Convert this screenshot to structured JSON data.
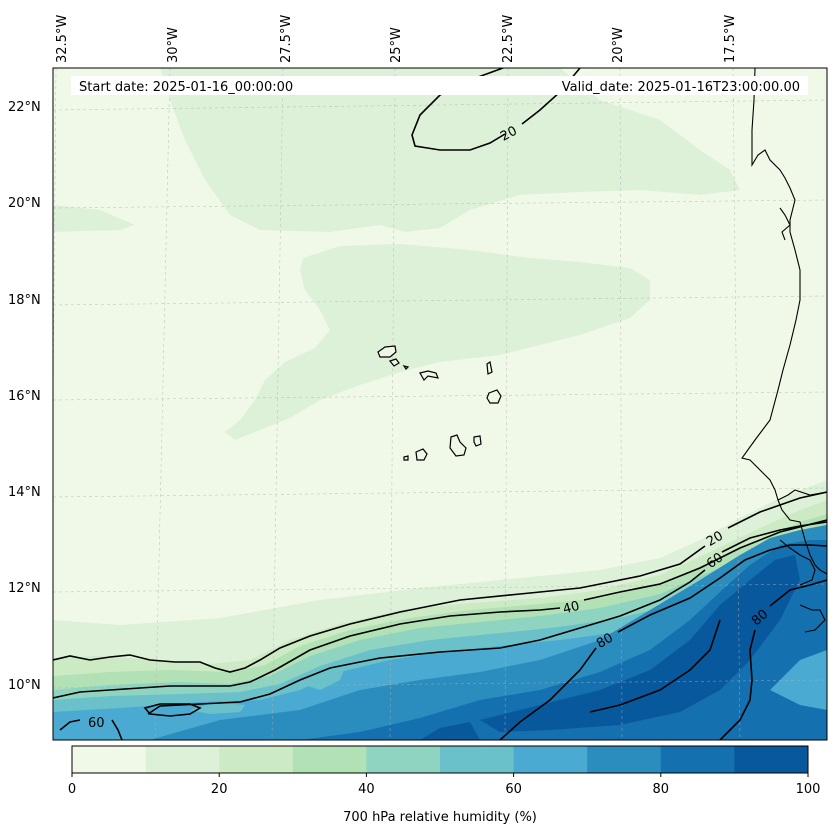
{
  "header": {
    "start_date": "Start date: 2025-01-16_00:00:00",
    "valid_date": "Valid_date: 2025-01-16T23:00:00.00"
  },
  "axes": {
    "lon_labels": [
      "32.5°W",
      "30°W",
      "27.5°W",
      "25°W",
      "22.5°W",
      "20°W",
      "17.5°W"
    ],
    "lat_labels": [
      "22°N",
      "20°N",
      "18°N",
      "16°N",
      "14°N",
      "12°N",
      "10°N"
    ]
  },
  "contour_labels": [
    {
      "text": "20"
    },
    {
      "text": "20"
    },
    {
      "text": "60"
    },
    {
      "text": "40"
    },
    {
      "text": "80"
    },
    {
      "text": "80"
    },
    {
      "text": "60"
    }
  ],
  "colorbar": {
    "title": "700 hPa relative humidity (%)",
    "ticks": [
      "0",
      "20",
      "40",
      "60",
      "80",
      "100"
    ],
    "levels": [
      0,
      10,
      20,
      30,
      40,
      50,
      60,
      70,
      80,
      90,
      100
    ],
    "colors": [
      "#f0f9e8",
      "#ddf1d8",
      "#ccebc5",
      "#b1e1b5",
      "#8fd4c1",
      "#6bc1c9",
      "#4aaad2",
      "#2b8cbe",
      "#1470af",
      "#08589e"
    ]
  },
  "palette": {
    "land": "#eff8e6",
    "coast": "#000000",
    "contour": "#000000",
    "grid": "#b0b0b0"
  }
}
